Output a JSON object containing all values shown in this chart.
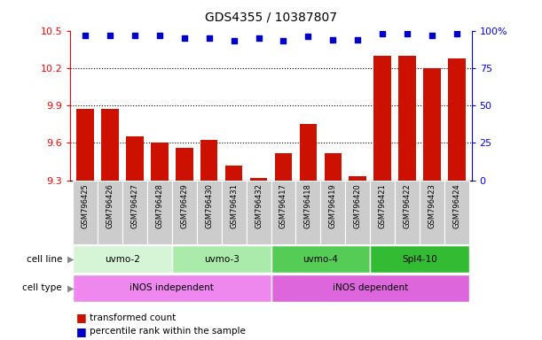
{
  "title": "GDS4355 / 10387807",
  "samples": [
    "GSM796425",
    "GSM796426",
    "GSM796427",
    "GSM796428",
    "GSM796429",
    "GSM796430",
    "GSM796431",
    "GSM796432",
    "GSM796417",
    "GSM796418",
    "GSM796419",
    "GSM796420",
    "GSM796421",
    "GSM796422",
    "GSM796423",
    "GSM796424"
  ],
  "red_values": [
    9.87,
    9.87,
    9.65,
    9.6,
    9.56,
    9.62,
    9.42,
    9.32,
    9.52,
    9.75,
    9.52,
    9.33,
    10.3,
    10.3,
    10.2,
    10.28
  ],
  "blue_values": [
    97,
    97,
    97,
    97,
    95,
    95,
    93,
    95,
    93,
    96,
    94,
    94,
    98,
    98,
    97,
    98
  ],
  "ylim_left": [
    9.3,
    10.5
  ],
  "ylim_right": [
    0,
    100
  ],
  "yticks_left": [
    9.3,
    9.6,
    9.9,
    10.2,
    10.5
  ],
  "yticks_right": [
    0,
    25,
    50,
    75,
    100
  ],
  "cell_line_groups": [
    {
      "label": "uvmo-2",
      "start": 0,
      "end": 3,
      "color": "#d6f5d6"
    },
    {
      "label": "uvmo-3",
      "start": 4,
      "end": 7,
      "color": "#aaeaaa"
    },
    {
      "label": "uvmo-4",
      "start": 8,
      "end": 11,
      "color": "#55cc55"
    },
    {
      "label": "Spl4-10",
      "start": 12,
      "end": 15,
      "color": "#33bb33"
    }
  ],
  "cell_type_groups": [
    {
      "label": "iNOS independent",
      "start": 0,
      "end": 7,
      "color": "#ee88ee"
    },
    {
      "label": "iNOS dependent",
      "start": 8,
      "end": 15,
      "color": "#dd66dd"
    }
  ],
  "bar_color": "#cc1100",
  "dot_color": "#0000cc",
  "sample_box_color": "#cccccc",
  "grid_color": "#000000",
  "title_fontsize": 10,
  "bar_width": 0.7
}
